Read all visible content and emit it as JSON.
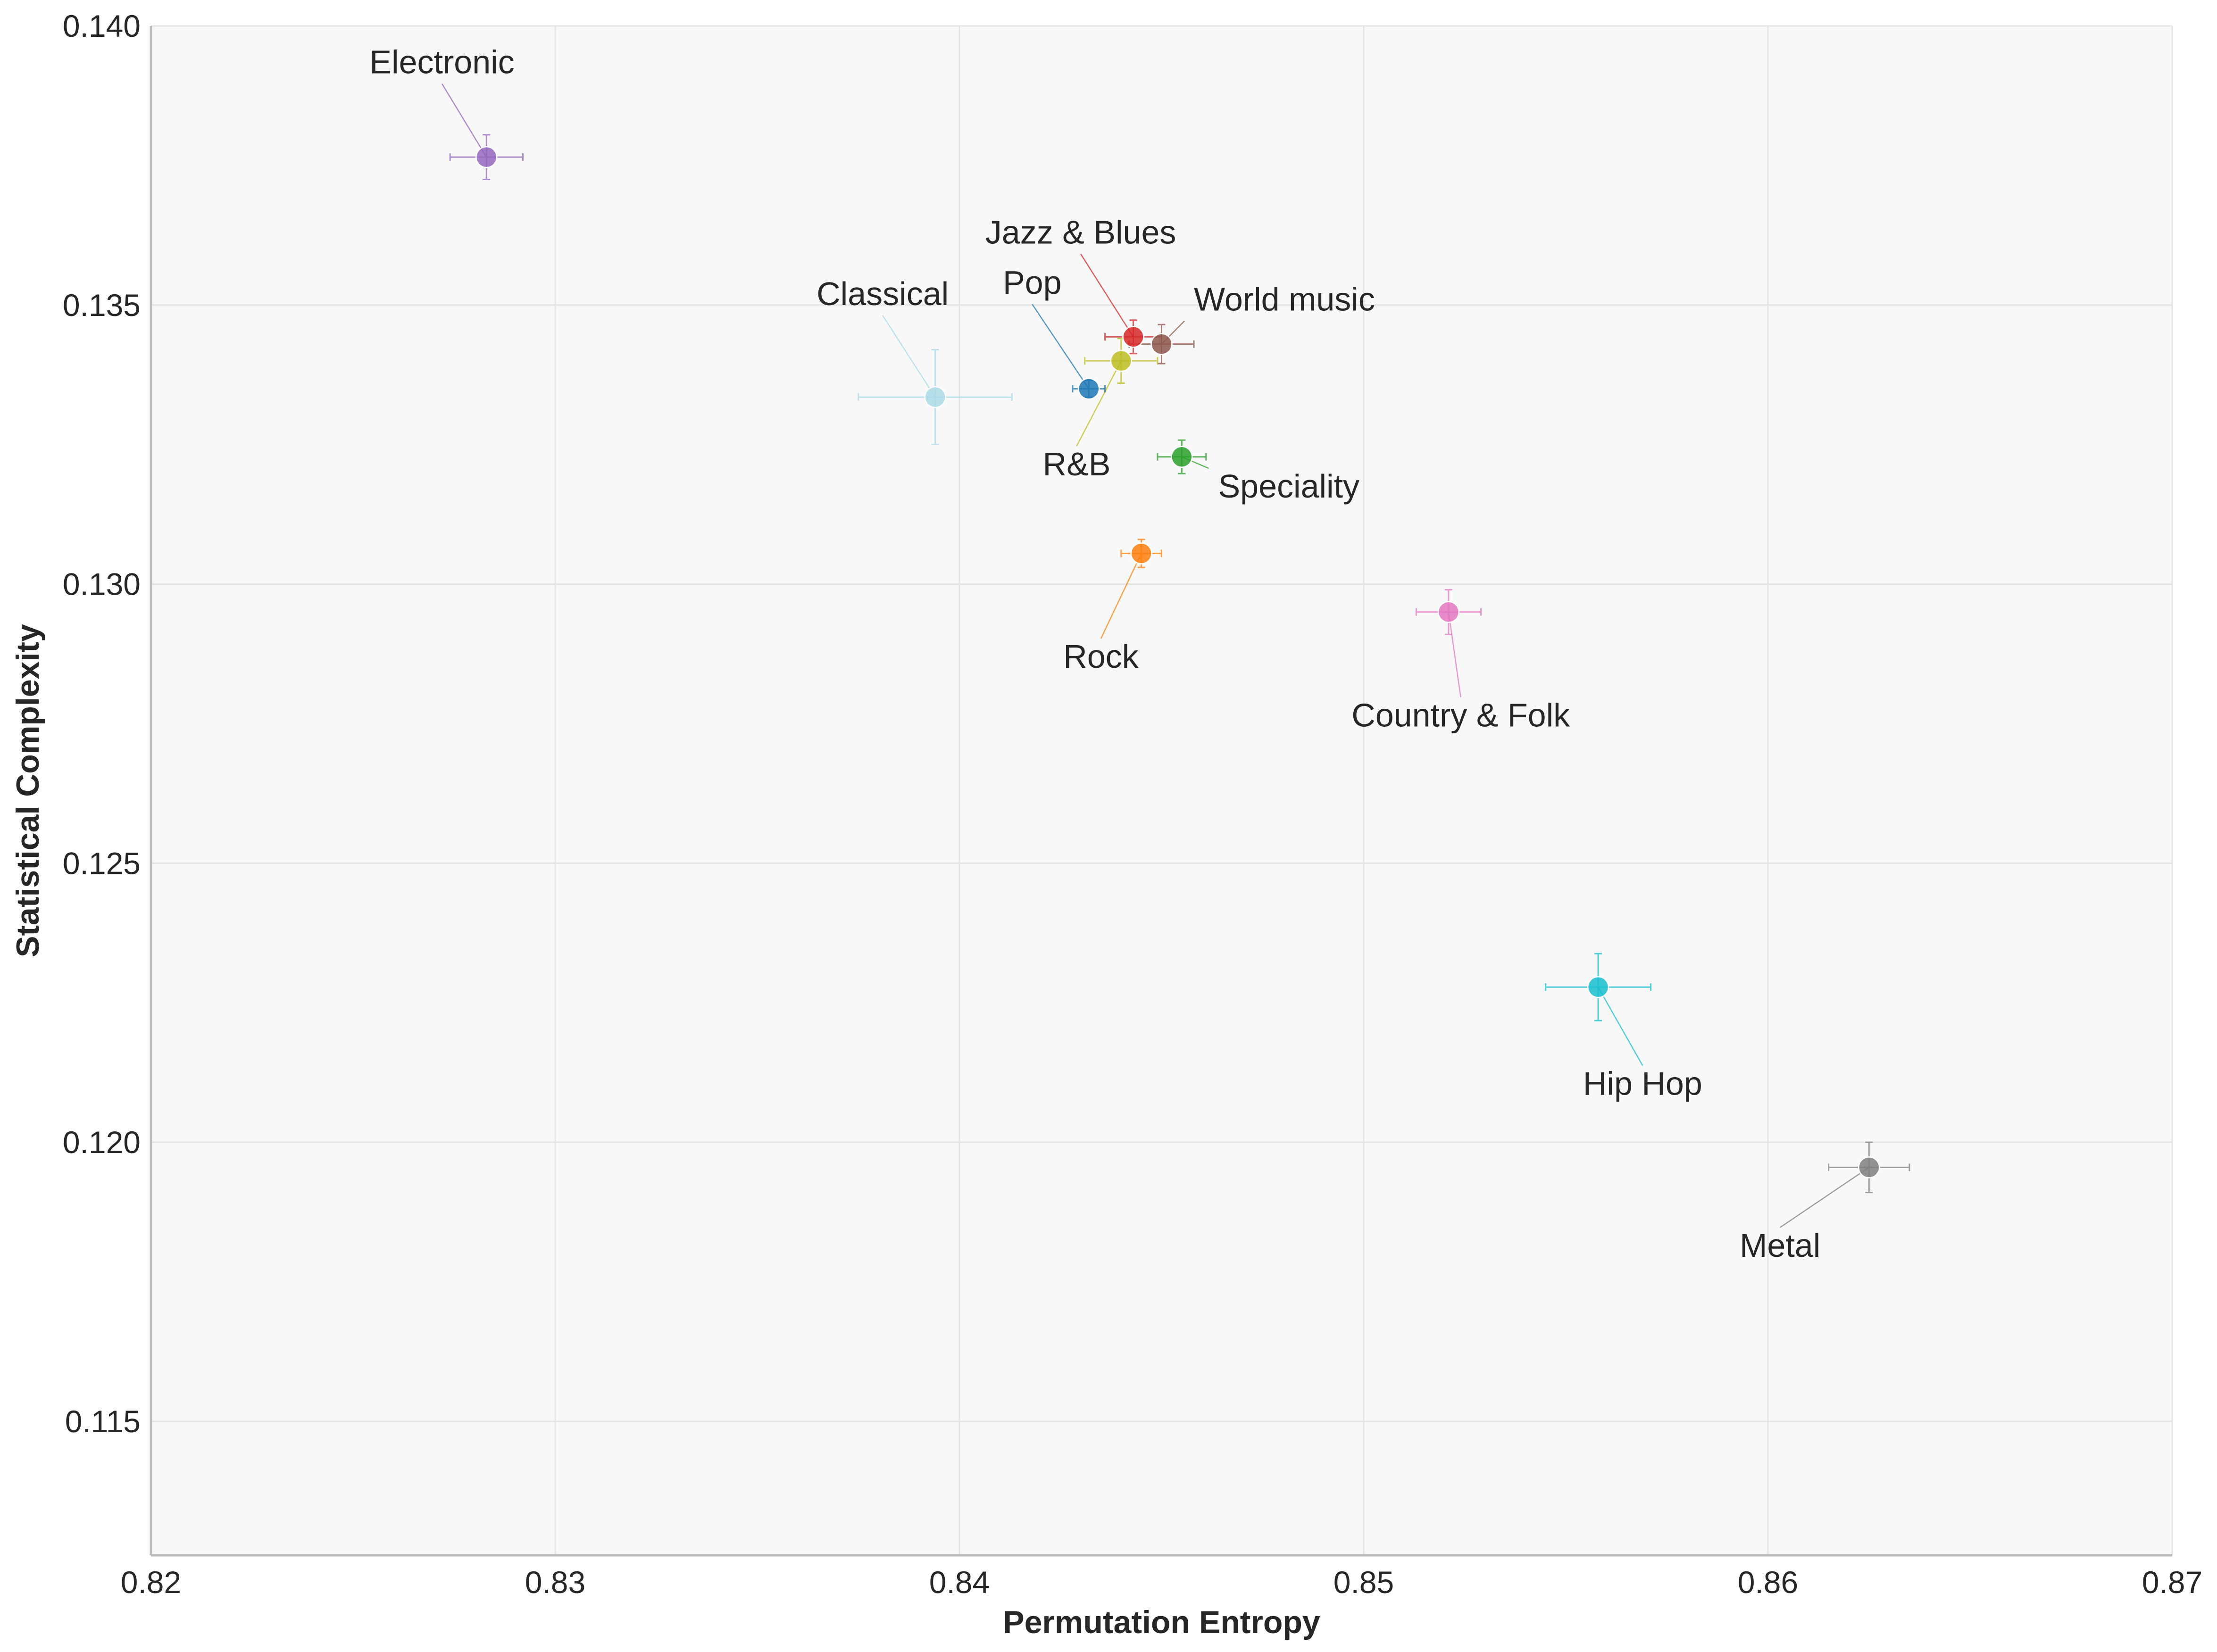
{
  "chart_data": {
    "type": "scatter",
    "xlabel": "Permutation Entropy",
    "ylabel": "Statistical Complexity",
    "xlim": [
      0.82,
      0.87
    ],
    "ylim": [
      0.1126,
      0.14
    ],
    "xticks": [
      "0.82",
      "0.83",
      "0.84",
      "0.85",
      "0.86",
      "0.87"
    ],
    "xtick_values": [
      0.82,
      0.83,
      0.84,
      0.85,
      0.86,
      0.87
    ],
    "yticks": [
      "0.115",
      "0.120",
      "0.125",
      "0.130",
      "0.135",
      "0.140"
    ],
    "ytick_values": [
      0.115,
      0.12,
      0.125,
      0.13,
      0.135,
      0.14
    ],
    "grid": true,
    "background": "#f8f8f8",
    "series": [
      {
        "name": "Electronic",
        "color": "#9467bd",
        "x": 0.8283,
        "y": 0.13765,
        "xerr": 0.0009,
        "yerr": 0.0004,
        "label_x": 0.8272,
        "label_y": 0.13915,
        "label_anchor": "middle"
      },
      {
        "name": "Jazz & Blues",
        "color": "#d62728",
        "x": 0.8443,
        "y": 0.13443,
        "xerr": 0.0007,
        "yerr": 0.0003,
        "label_x": 0.843,
        "label_y": 0.1361,
        "label_anchor": "middle"
      },
      {
        "name": "World music",
        "color": "#8c564b",
        "x": 0.845,
        "y": 0.1343,
        "xerr": 0.0008,
        "yerr": 0.00035,
        "label_x": 0.8458,
        "label_y": 0.1349,
        "label_anchor": "start"
      },
      {
        "name": "Classical",
        "color": "#aadbe6",
        "x": 0.8394,
        "y": 0.13335,
        "xerr": 0.0019,
        "yerr": 0.00085,
        "label_x": 0.8381,
        "label_y": 0.135,
        "label_anchor": "middle"
      },
      {
        "name": "Pop",
        "color": "#1f77b4",
        "x": 0.8432,
        "y": 0.1335,
        "xerr": 0.0004,
        "yerr": 0.00015,
        "label_x": 0.8418,
        "label_y": 0.1352,
        "label_anchor": "middle"
      },
      {
        "name": "R&B",
        "color": "#bcbd22",
        "x": 0.844,
        "y": 0.134,
        "xerr": 0.0009,
        "yerr": 0.0004,
        "label_x": 0.8429,
        "label_y": 0.13195,
        "label_anchor": "middle"
      },
      {
        "name": "Speciality",
        "color": "#2ca02c",
        "x": 0.8455,
        "y": 0.13228,
        "xerr": 0.0006,
        "yerr": 0.0003,
        "label_x": 0.8464,
        "label_y": 0.13155,
        "label_anchor": "start"
      },
      {
        "name": "Rock",
        "color": "#ff7f0e",
        "x": 0.8445,
        "y": 0.13055,
        "xerr": 0.0005,
        "yerr": 0.00025,
        "label_x": 0.8435,
        "label_y": 0.1285,
        "label_anchor": "middle"
      },
      {
        "name": "Country & Folk",
        "color": "#e377c2",
        "x": 0.8521,
        "y": 0.1295,
        "xerr": 0.0008,
        "yerr": 0.0004,
        "label_x": 0.8524,
        "label_y": 0.12745,
        "label_anchor": "middle"
      },
      {
        "name": "Hip Hop",
        "color": "#17becf",
        "x": 0.8558,
        "y": 0.12278,
        "xerr": 0.0013,
        "yerr": 0.0006,
        "label_x": 0.8569,
        "label_y": 0.12085,
        "label_anchor": "middle"
      },
      {
        "name": "Metal",
        "color": "#7f7f7f",
        "x": 0.8625,
        "y": 0.11955,
        "xerr": 0.001,
        "yerr": 0.00045,
        "label_x": 0.8603,
        "label_y": 0.11795,
        "label_anchor": "middle"
      }
    ]
  }
}
